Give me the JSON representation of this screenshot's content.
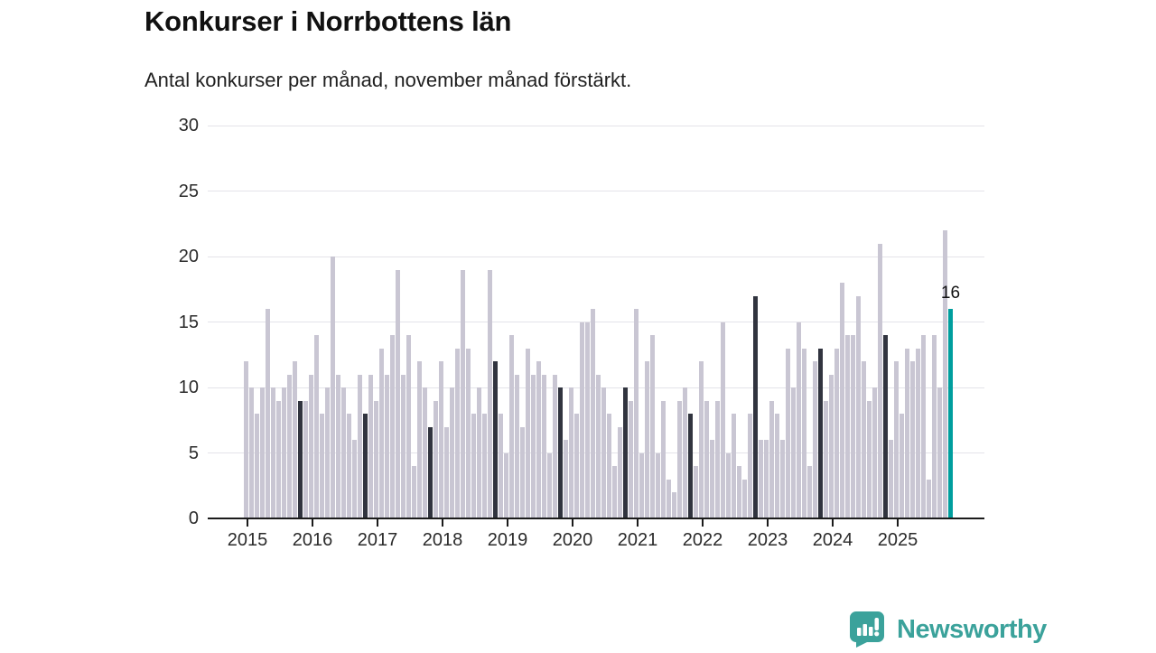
{
  "header": {
    "title": "Konkurser i Norrbottens län",
    "subtitle": "Antal konkurser per månad, november månad förstärkt."
  },
  "chart_data": {
    "type": "bar",
    "title": "Konkurser i Norrbottens län",
    "subtitle": "Antal konkurser per månad, november månad förstärkt.",
    "xlabel": "",
    "ylabel": "",
    "ylim": [
      0,
      30
    ],
    "y_ticks": [
      0,
      5,
      10,
      15,
      20,
      25,
      30
    ],
    "grid": "horizontal",
    "legend_position": "none",
    "highlight_rule": "November bars darkened; latest November bar teal with value label",
    "categories_note": "monthly values January-December per year",
    "series": [
      {
        "year": "2015",
        "values": [
          12,
          10,
          8,
          10,
          16,
          10,
          9,
          10,
          11,
          12,
          9,
          9
        ]
      },
      {
        "year": "2016",
        "values": [
          11,
          14,
          8,
          10,
          20,
          11,
          10,
          8,
          6,
          11,
          8,
          11
        ]
      },
      {
        "year": "2017",
        "values": [
          9,
          13,
          11,
          14,
          19,
          11,
          14,
          4,
          12,
          10,
          7,
          9
        ]
      },
      {
        "year": "2018",
        "values": [
          12,
          7,
          10,
          13,
          19,
          13,
          8,
          10,
          8,
          19,
          12,
          8
        ]
      },
      {
        "year": "2019",
        "values": [
          5,
          14,
          11,
          7,
          13,
          11,
          12,
          11,
          5,
          11,
          10,
          6
        ]
      },
      {
        "year": "2020",
        "values": [
          10,
          8,
          15,
          15,
          16,
          11,
          10,
          8,
          4,
          7,
          10,
          9
        ]
      },
      {
        "year": "2021",
        "values": [
          16,
          5,
          12,
          14,
          5,
          9,
          3,
          2,
          9,
          10,
          8,
          4
        ]
      },
      {
        "year": "2022",
        "values": [
          12,
          9,
          6,
          9,
          15,
          5,
          8,
          4,
          3,
          8,
          17,
          6
        ]
      },
      {
        "year": "2023",
        "values": [
          6,
          9,
          8,
          6,
          13,
          10,
          15,
          13,
          4,
          12,
          13,
          9
        ]
      },
      {
        "year": "2024",
        "values": [
          11,
          13,
          18,
          14,
          14,
          17,
          12,
          9,
          10,
          21,
          14,
          6
        ]
      },
      {
        "year": "2025",
        "values": [
          12,
          8,
          13,
          12,
          13,
          14,
          3,
          14,
          10,
          22,
          16
        ]
      }
    ],
    "x_tick_labels": [
      "2015",
      "2016",
      "2017",
      "2018",
      "2019",
      "2020",
      "2021",
      "2022",
      "2023",
      "2024",
      "2025"
    ],
    "november_index": 10,
    "annotation": {
      "text": "16",
      "year": "2025",
      "month_index": 10
    }
  },
  "colors": {
    "bar_default": "#c9c6d3",
    "bar_november": "#31343f",
    "bar_current": "#009e9e",
    "grid": "#e4e3e9",
    "axis": "#1b1b1b",
    "brand": "#3ba29b"
  },
  "footer": {
    "brand": "Newsworthy"
  }
}
